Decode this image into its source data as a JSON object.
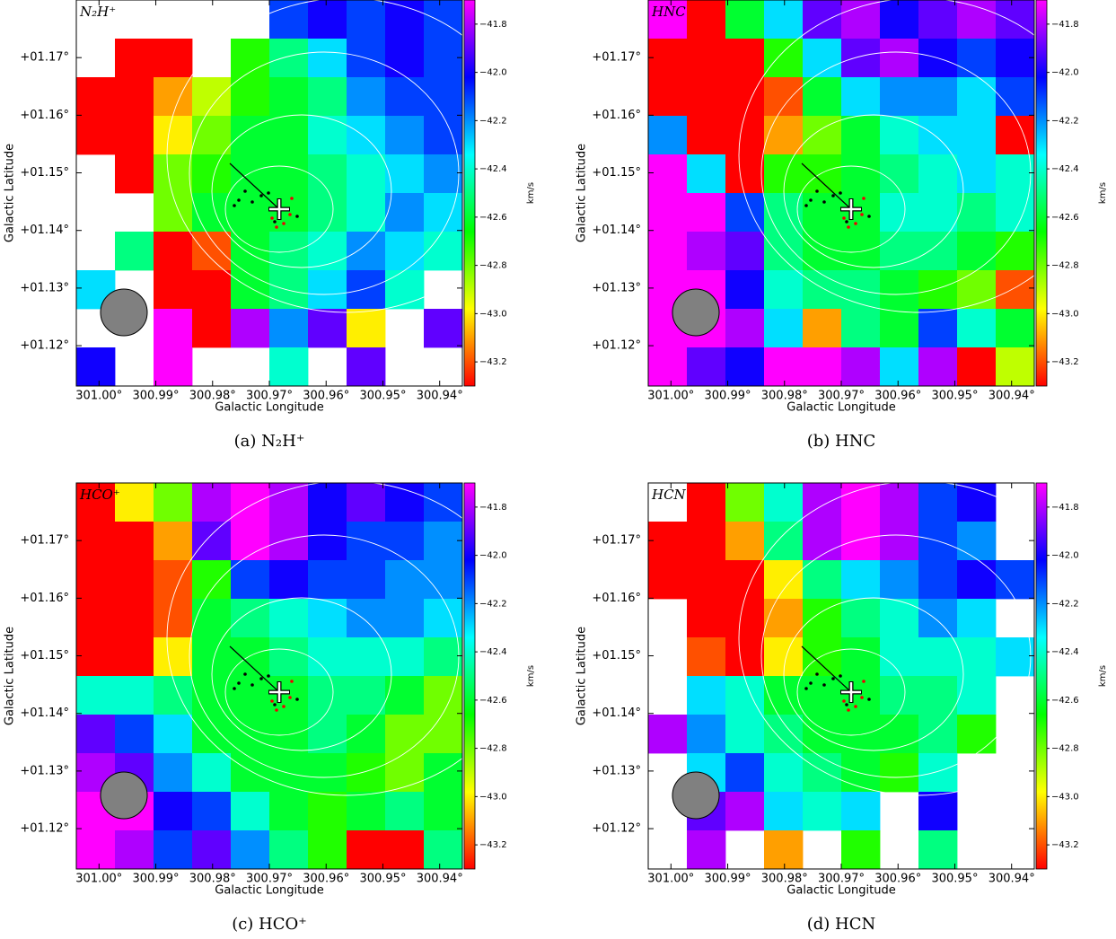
{
  "chart_data": [
    {
      "type": "heatmap",
      "title": "N₂H⁺",
      "caption": "(a) N₂H⁺",
      "xlabel": "Galactic Longitude",
      "ylabel": "Galactic Latitude",
      "xlim": [
        301.004,
        300.936
      ],
      "ylim": [
        1.113,
        1.18
      ],
      "xticks": [
        {
          "value": 301.0,
          "label": "301.00°"
        },
        {
          "value": 300.99,
          "label": "300.99°"
        },
        {
          "value": 300.98,
          "label": "300.98°"
        },
        {
          "value": 300.97,
          "label": "300.97°"
        },
        {
          "value": 300.96,
          "label": "300.96°"
        },
        {
          "value": 300.95,
          "label": "300.95°"
        },
        {
          "value": 300.94,
          "label": "300.94°"
        }
      ],
      "yticks": [
        {
          "value": 1.17,
          "label": "+01.17°"
        },
        {
          "value": 1.16,
          "label": "+01.16°"
        },
        {
          "value": 1.15,
          "label": "+01.15°"
        },
        {
          "value": 1.14,
          "label": "+01.14°"
        },
        {
          "value": 1.13,
          "label": "+01.13°"
        },
        {
          "value": 1.12,
          "label": "+01.12°"
        }
      ],
      "colorbar": {
        "label": "km/s",
        "lim": [
          -43.3,
          -41.7
        ],
        "ticks": [
          {
            "value": -41.8,
            "label": "−41.8"
          },
          {
            "value": -42.0,
            "label": "−42.0"
          },
          {
            "value": -42.2,
            "label": "−42.2"
          },
          {
            "value": -42.4,
            "label": "−42.4"
          },
          {
            "value": -42.6,
            "label": "−42.6"
          },
          {
            "value": -42.8,
            "label": "−42.8"
          },
          {
            "value": -43.0,
            "label": "−43.0"
          },
          {
            "value": -43.2,
            "label": "−43.2"
          }
        ]
      },
      "values": [
        [
          null,
          null,
          null,
          null,
          null,
          -42.1,
          -42.0,
          -42.1,
          -42.0,
          -42.1
        ],
        [
          null,
          -43.3,
          -43.3,
          null,
          -42.7,
          -42.5,
          -42.3,
          -42.1,
          -42.0,
          -42.1
        ],
        [
          -43.3,
          -43.3,
          -43.1,
          -42.9,
          -42.7,
          -42.6,
          -42.5,
          -42.2,
          -42.1,
          -42.1
        ],
        [
          -43.3,
          -43.3,
          -43.0,
          -42.8,
          -42.6,
          -42.6,
          -42.4,
          -42.3,
          -42.2,
          -42.1
        ],
        [
          null,
          -43.3,
          -42.8,
          -42.7,
          -42.6,
          -42.6,
          -42.5,
          -42.4,
          -42.3,
          -42.2
        ],
        [
          null,
          null,
          -42.8,
          -42.6,
          -42.6,
          -42.6,
          -42.5,
          -42.4,
          -42.2,
          -42.3
        ],
        [
          null,
          -42.5,
          -43.3,
          -43.2,
          -42.6,
          -42.5,
          -42.4,
          -42.2,
          -42.3,
          -42.4
        ],
        [
          -42.3,
          null,
          -43.3,
          -43.3,
          -42.6,
          -42.5,
          -42.3,
          -42.1,
          -42.4,
          null
        ],
        [
          null,
          null,
          -41.7,
          -43.3,
          -41.8,
          -42.2,
          -41.9,
          -43.0,
          null,
          -41.9
        ],
        [
          -42.0,
          null,
          -41.7,
          null,
          null,
          -42.4,
          null,
          -41.9,
          null,
          null
        ]
      ]
    },
    {
      "type": "heatmap",
      "title": "HNC",
      "caption": "(b) HNC",
      "xlabel": "Galactic Longitude",
      "ylabel": "Galactic Latitude",
      "xlim": [
        301.004,
        300.936
      ],
      "ylim": [
        1.113,
        1.18
      ],
      "xticks": [
        {
          "value": 301.0,
          "label": "301.00°"
        },
        {
          "value": 300.99,
          "label": "300.99°"
        },
        {
          "value": 300.98,
          "label": "300.98°"
        },
        {
          "value": 300.97,
          "label": "300.97°"
        },
        {
          "value": 300.96,
          "label": "300.96°"
        },
        {
          "value": 300.95,
          "label": "300.95°"
        },
        {
          "value": 300.94,
          "label": "300.94°"
        }
      ],
      "yticks": [
        {
          "value": 1.17,
          "label": "+01.17°"
        },
        {
          "value": 1.16,
          "label": "+01.16°"
        },
        {
          "value": 1.15,
          "label": "+01.15°"
        },
        {
          "value": 1.14,
          "label": "+01.14°"
        },
        {
          "value": 1.13,
          "label": "+01.13°"
        },
        {
          "value": 1.12,
          "label": "+01.12°"
        }
      ],
      "colorbar": {
        "label": "km/s",
        "lim": [
          -43.3,
          -41.7
        ],
        "ticks": [
          {
            "value": -41.8,
            "label": "−41.8"
          },
          {
            "value": -42.0,
            "label": "−42.0"
          },
          {
            "value": -42.2,
            "label": "−42.2"
          },
          {
            "value": -42.4,
            "label": "−42.4"
          },
          {
            "value": -42.6,
            "label": "−42.6"
          },
          {
            "value": -42.8,
            "label": "−42.8"
          },
          {
            "value": -43.0,
            "label": "−43.0"
          },
          {
            "value": -43.2,
            "label": "−43.2"
          }
        ]
      },
      "values": [
        [
          -41.7,
          -43.3,
          -42.6,
          -42.3,
          -41.9,
          -41.8,
          -42.0,
          -41.9,
          -41.8,
          -41.9
        ],
        [
          -43.3,
          -43.3,
          -43.3,
          -42.7,
          -42.3,
          -41.9,
          -41.8,
          -42.0,
          -42.1,
          -42.0
        ],
        [
          -43.3,
          -43.3,
          -43.3,
          -43.2,
          -42.6,
          -42.3,
          -42.2,
          -42.2,
          -42.3,
          -42.1
        ],
        [
          -42.2,
          -43.3,
          -43.3,
          -43.1,
          -42.8,
          -42.6,
          -42.4,
          -42.3,
          -42.3,
          -43.3
        ],
        [
          -41.7,
          -42.3,
          -43.3,
          -42.7,
          -42.7,
          -42.6,
          -42.5,
          -42.4,
          -42.3,
          -42.4
        ],
        [
          -41.7,
          -41.7,
          -42.1,
          -42.5,
          -42.6,
          -42.6,
          -42.4,
          -42.4,
          -42.5,
          -42.4
        ],
        [
          -41.7,
          -41.8,
          -41.9,
          -42.5,
          -42.6,
          -42.6,
          -42.5,
          -42.5,
          -42.6,
          -42.7
        ],
        [
          -41.7,
          -41.7,
          -42.0,
          -42.4,
          -42.5,
          -42.5,
          -42.6,
          -42.7,
          -42.8,
          -43.2
        ],
        [
          -41.7,
          -41.7,
          -41.8,
          -42.3,
          -43.1,
          -42.5,
          -42.6,
          -42.1,
          -42.4,
          -42.6
        ],
        [
          -41.7,
          -41.9,
          -42.0,
          -41.7,
          -41.7,
          -41.8,
          -42.3,
          -41.8,
          -43.3,
          -42.9
        ]
      ]
    },
    {
      "type": "heatmap",
      "title": "HCO⁺",
      "caption": "(c) HCO⁺",
      "xlabel": "Galactic Longitude",
      "ylabel": "Galactic Latitude",
      "xlim": [
        301.004,
        300.936
      ],
      "ylim": [
        1.113,
        1.18
      ],
      "xticks": [
        {
          "value": 301.0,
          "label": "301.00°"
        },
        {
          "value": 300.99,
          "label": "300.99°"
        },
        {
          "value": 300.98,
          "label": "300.98°"
        },
        {
          "value": 300.97,
          "label": "300.97°"
        },
        {
          "value": 300.96,
          "label": "300.96°"
        },
        {
          "value": 300.95,
          "label": "300.95°"
        },
        {
          "value": 300.94,
          "label": "300.94°"
        }
      ],
      "yticks": [
        {
          "value": 1.17,
          "label": "+01.17°"
        },
        {
          "value": 1.16,
          "label": "+01.16°"
        },
        {
          "value": 1.15,
          "label": "+01.15°"
        },
        {
          "value": 1.14,
          "label": "+01.14°"
        },
        {
          "value": 1.13,
          "label": "+01.13°"
        },
        {
          "value": 1.12,
          "label": "+01.12°"
        }
      ],
      "colorbar": {
        "label": "km/s",
        "lim": [
          -43.3,
          -41.7
        ],
        "ticks": [
          {
            "value": -41.8,
            "label": "−41.8"
          },
          {
            "value": -42.0,
            "label": "−42.0"
          },
          {
            "value": -42.2,
            "label": "−42.2"
          },
          {
            "value": -42.4,
            "label": "−42.4"
          },
          {
            "value": -42.6,
            "label": "−42.6"
          },
          {
            "value": -42.8,
            "label": "−42.8"
          },
          {
            "value": -43.0,
            "label": "−43.0"
          },
          {
            "value": -43.2,
            "label": "−43.2"
          }
        ]
      },
      "values": [
        [
          -43.3,
          -43.0,
          -42.8,
          -41.8,
          -41.7,
          -41.8,
          -42.0,
          -41.9,
          -42.0,
          -42.1
        ],
        [
          -43.3,
          -43.3,
          -43.1,
          -41.9,
          -41.7,
          -41.8,
          -42.0,
          -42.1,
          -42.1,
          -42.2
        ],
        [
          -43.3,
          -43.3,
          -43.2,
          -42.7,
          -42.1,
          -42.0,
          -42.1,
          -42.1,
          -42.2,
          -42.2
        ],
        [
          -43.3,
          -43.3,
          -43.2,
          -42.6,
          -42.5,
          -42.4,
          -42.3,
          -42.2,
          -42.2,
          -42.3
        ],
        [
          -43.3,
          -43.3,
          -43.0,
          -42.6,
          -42.6,
          -42.5,
          -42.4,
          -42.4,
          -42.4,
          -42.5
        ],
        [
          -42.4,
          -42.4,
          -42.5,
          -42.6,
          -42.6,
          -42.6,
          -42.5,
          -42.5,
          -42.6,
          -42.8
        ],
        [
          -41.9,
          -42.1,
          -42.3,
          -42.6,
          -42.6,
          -42.6,
          -42.5,
          -42.6,
          -42.8,
          -42.8
        ],
        [
          -41.8,
          -41.9,
          -42.2,
          -42.4,
          -42.6,
          -42.6,
          -42.6,
          -42.7,
          -42.8,
          -42.6
        ],
        [
          -41.7,
          -41.7,
          -42.0,
          -42.1,
          -42.4,
          -42.6,
          -42.7,
          -42.6,
          -42.5,
          -42.6
        ],
        [
          -41.7,
          -41.8,
          -42.1,
          -41.9,
          -42.2,
          -42.5,
          -42.7,
          -43.3,
          -43.3,
          -42.5
        ]
      ]
    },
    {
      "type": "heatmap",
      "title": "HCN",
      "caption": "(d) HCN",
      "xlabel": "Galactic Longitude",
      "ylabel": "Galactic Latitude",
      "xlim": [
        301.004,
        300.936
      ],
      "ylim": [
        1.113,
        1.18
      ],
      "xticks": [
        {
          "value": 301.0,
          "label": "301.00°"
        },
        {
          "value": 300.99,
          "label": "300.99°"
        },
        {
          "value": 300.98,
          "label": "300.98°"
        },
        {
          "value": 300.97,
          "label": "300.97°"
        },
        {
          "value": 300.96,
          "label": "300.96°"
        },
        {
          "value": 300.95,
          "label": "300.95°"
        },
        {
          "value": 300.94,
          "label": "300.94°"
        }
      ],
      "yticks": [
        {
          "value": 1.17,
          "label": "+01.17°"
        },
        {
          "value": 1.16,
          "label": "+01.16°"
        },
        {
          "value": 1.15,
          "label": "+01.15°"
        },
        {
          "value": 1.14,
          "label": "+01.14°"
        },
        {
          "value": 1.13,
          "label": "+01.13°"
        },
        {
          "value": 1.12,
          "label": "+01.12°"
        }
      ],
      "colorbar": {
        "label": "km/s",
        "lim": [
          -43.3,
          -41.7
        ],
        "ticks": [
          {
            "value": -41.8,
            "label": "−41.8"
          },
          {
            "value": -42.0,
            "label": "−42.0"
          },
          {
            "value": -42.2,
            "label": "−42.2"
          },
          {
            "value": -42.4,
            "label": "−42.4"
          },
          {
            "value": -42.6,
            "label": "−42.6"
          },
          {
            "value": -42.8,
            "label": "−42.8"
          },
          {
            "value": -43.0,
            "label": "−43.0"
          },
          {
            "value": -43.2,
            "label": "−43.2"
          }
        ]
      },
      "values": [
        [
          null,
          -43.3,
          -42.8,
          -42.4,
          -41.8,
          -41.7,
          -41.8,
          -42.1,
          -42.0,
          null
        ],
        [
          -43.3,
          -43.3,
          -43.1,
          -42.5,
          -41.8,
          -41.7,
          -41.8,
          -42.1,
          -42.2,
          null
        ],
        [
          -43.3,
          -43.3,
          -43.3,
          -43.0,
          -42.5,
          -42.3,
          -42.2,
          -42.1,
          -42.0,
          -42.1
        ],
        [
          null,
          -43.3,
          -43.3,
          -43.1,
          -42.7,
          -42.5,
          -42.4,
          -42.2,
          -42.3,
          null
        ],
        [
          null,
          -43.2,
          -43.3,
          -43.0,
          -42.7,
          -42.6,
          -42.4,
          -42.4,
          -42.4,
          -42.3
        ],
        [
          null,
          -42.3,
          -42.4,
          -42.6,
          -42.6,
          -42.6,
          -42.5,
          -42.5,
          -42.4,
          null
        ],
        [
          -41.8,
          -42.2,
          -42.4,
          -42.5,
          -42.6,
          -42.6,
          -42.6,
          -42.5,
          -42.7,
          null
        ],
        [
          null,
          -42.3,
          -42.1,
          -42.4,
          -42.5,
          -42.6,
          -42.7,
          -42.4,
          null,
          null
        ],
        [
          null,
          -41.9,
          -41.8,
          -42.3,
          -42.4,
          -42.3,
          null,
          -42.0,
          null,
          null
        ],
        [
          null,
          -41.8,
          null,
          -43.1,
          null,
          -42.7,
          null,
          -42.5,
          null,
          null
        ]
      ]
    }
  ]
}
